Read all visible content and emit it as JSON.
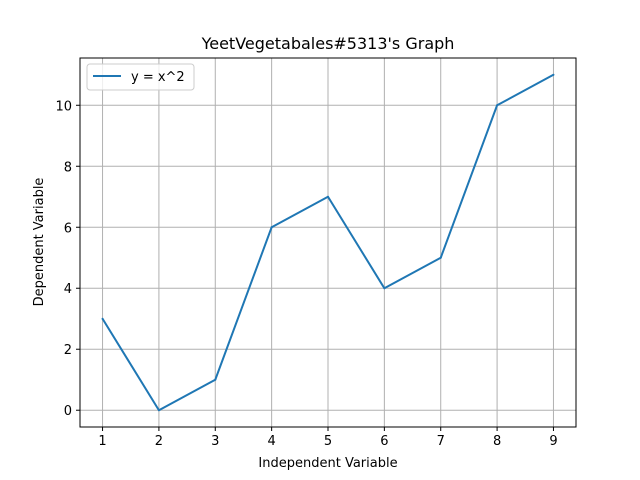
{
  "chart_data": {
    "type": "line",
    "title": "YeetVegetabales#5313's Graph",
    "xlabel": "Independent Variable",
    "ylabel": "Dependent Variable",
    "x": [
      1,
      2,
      3,
      4,
      5,
      6,
      7,
      8,
      9
    ],
    "series": [
      {
        "name": "y = x^2",
        "values": [
          3,
          0,
          1,
          6,
          7,
          4,
          5,
          10,
          11
        ],
        "color": "#1f77b4"
      }
    ],
    "xticks": [
      1,
      2,
      3,
      4,
      5,
      6,
      7,
      8,
      9
    ],
    "yticks": [
      0,
      2,
      4,
      6,
      8,
      10
    ],
    "xlim": [
      0.6,
      9.4
    ],
    "ylim": [
      -0.55,
      11.55
    ],
    "grid": true,
    "grid_color": "#b0b0b0",
    "legend_position": "upper-left"
  }
}
